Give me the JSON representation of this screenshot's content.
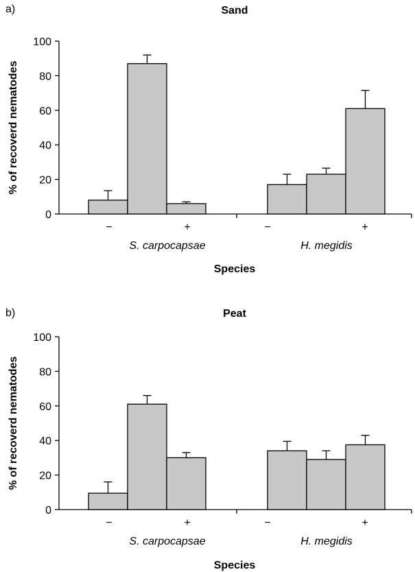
{
  "chart_data": [
    {
      "type": "bar",
      "panel_label": "a)",
      "title": "Sand",
      "xlabel": "Species",
      "ylabel": "% of recoverd nematodes",
      "ylim": [
        0,
        100
      ],
      "yticks": [
        "0",
        "20",
        "40",
        "60",
        "80",
        "100"
      ],
      "groups": [
        {
          "label": "S. carpocapsae",
          "signs": [
            "−",
            "+"
          ],
          "values": [
            8,
            87,
            6
          ],
          "errors": [
            5.5,
            5,
            1
          ]
        },
        {
          "label": "H. megidis",
          "signs": [
            "−",
            "+"
          ],
          "values": [
            17,
            23,
            61
          ],
          "errors": [
            6,
            3.5,
            10.5
          ]
        }
      ],
      "bar_color": "#c8c8c8",
      "grid": false
    },
    {
      "type": "bar",
      "panel_label": "b)",
      "title": "Peat",
      "xlabel": "Species",
      "ylabel": "% of recoverd nematodes",
      "ylim": [
        0,
        100
      ],
      "yticks": [
        "0",
        "20",
        "40",
        "60",
        "80",
        "100"
      ],
      "groups": [
        {
          "label": "S. carpocapsae",
          "signs": [
            "−",
            "+"
          ],
          "values": [
            9.5,
            61,
            30
          ],
          "errors": [
            6.5,
            5,
            3
          ]
        },
        {
          "label": "H. megidis",
          "signs": [
            "−",
            "+"
          ],
          "values": [
            34,
            29,
            37.5
          ],
          "errors": [
            5.5,
            5,
            5.5
          ]
        }
      ],
      "bar_color": "#c8c8c8",
      "grid": false
    }
  ]
}
